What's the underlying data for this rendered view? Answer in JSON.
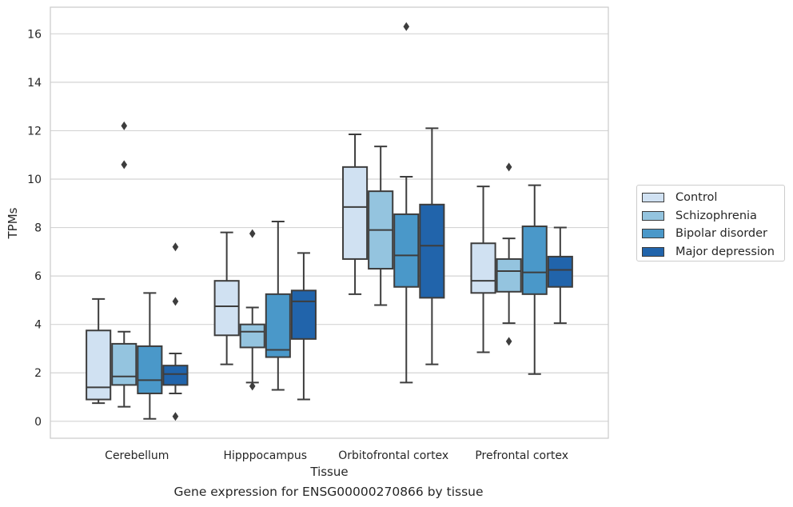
{
  "chart_data": {
    "type": "box",
    "title": "",
    "caption": "Gene expression for ENSG00000270866 by tissue",
    "xlabel": "Tissue",
    "ylabel": "TPMs",
    "ylim": [
      -0.7,
      17.1
    ],
    "yticks": [
      0,
      2,
      4,
      6,
      8,
      10,
      12,
      14,
      16
    ],
    "grid": true,
    "legend_position": "right",
    "categories": [
      "Cerebellum",
      "Hipppocampus",
      "Orbitofrontal cortex",
      "Prefrontal cortex"
    ],
    "series": [
      {
        "name": "Control",
        "color": "#d0e1f2",
        "boxes": [
          {
            "whislo": 0.75,
            "q1": 0.9,
            "med": 1.4,
            "q3": 3.75,
            "whishi": 5.05,
            "fliers": []
          },
          {
            "whislo": 2.35,
            "q1": 3.55,
            "med": 4.75,
            "q3": 5.8,
            "whishi": 7.8,
            "fliers": []
          },
          {
            "whislo": 5.25,
            "q1": 6.7,
            "med": 8.85,
            "q3": 10.5,
            "whishi": 11.85,
            "fliers": []
          },
          {
            "whislo": 2.85,
            "q1": 5.3,
            "med": 5.8,
            "q3": 7.35,
            "whishi": 9.7,
            "fliers": []
          }
        ]
      },
      {
        "name": "Schizophrenia",
        "color": "#94c4df",
        "boxes": [
          {
            "whislo": 0.6,
            "q1": 1.5,
            "med": 1.85,
            "q3": 3.2,
            "whishi": 3.7,
            "fliers": [
              10.6,
              12.2
            ]
          },
          {
            "whislo": 1.6,
            "q1": 3.05,
            "med": 3.7,
            "q3": 4.0,
            "whishi": 4.7,
            "fliers": [
              1.45,
              7.75
            ]
          },
          {
            "whislo": 4.8,
            "q1": 6.3,
            "med": 7.9,
            "q3": 9.5,
            "whishi": 11.35,
            "fliers": []
          },
          {
            "whislo": 4.05,
            "q1": 5.35,
            "med": 6.2,
            "q3": 6.7,
            "whishi": 7.55,
            "fliers": [
              3.3,
              10.5
            ]
          }
        ]
      },
      {
        "name": "Bipolar disorder",
        "color": "#4a98c9",
        "boxes": [
          {
            "whislo": 0.1,
            "q1": 1.15,
            "med": 1.7,
            "q3": 3.1,
            "whishi": 5.3,
            "fliers": []
          },
          {
            "whislo": 1.3,
            "q1": 2.65,
            "med": 2.95,
            "q3": 5.25,
            "whishi": 8.25,
            "fliers": []
          },
          {
            "whislo": 1.6,
            "q1": 5.55,
            "med": 6.85,
            "q3": 8.55,
            "whishi": 10.1,
            "fliers": [
              16.3
            ]
          },
          {
            "whislo": 1.95,
            "q1": 5.25,
            "med": 6.15,
            "q3": 8.05,
            "whishi": 9.75,
            "fliers": []
          }
        ]
      },
      {
        "name": "Major depression",
        "color": "#2164ab",
        "boxes": [
          {
            "whislo": 1.15,
            "q1": 1.5,
            "med": 1.95,
            "q3": 2.3,
            "whishi": 2.8,
            "fliers": [
              0.2,
              4.95,
              7.2
            ]
          },
          {
            "whislo": 0.9,
            "q1": 3.4,
            "med": 4.95,
            "q3": 5.4,
            "whishi": 6.95,
            "fliers": []
          },
          {
            "whislo": 2.35,
            "q1": 5.1,
            "med": 7.25,
            "q3": 8.95,
            "whishi": 12.1,
            "fliers": []
          },
          {
            "whislo": 4.05,
            "q1": 5.55,
            "med": 6.25,
            "q3": 6.8,
            "whishi": 8.0,
            "fliers": []
          }
        ]
      }
    ]
  }
}
